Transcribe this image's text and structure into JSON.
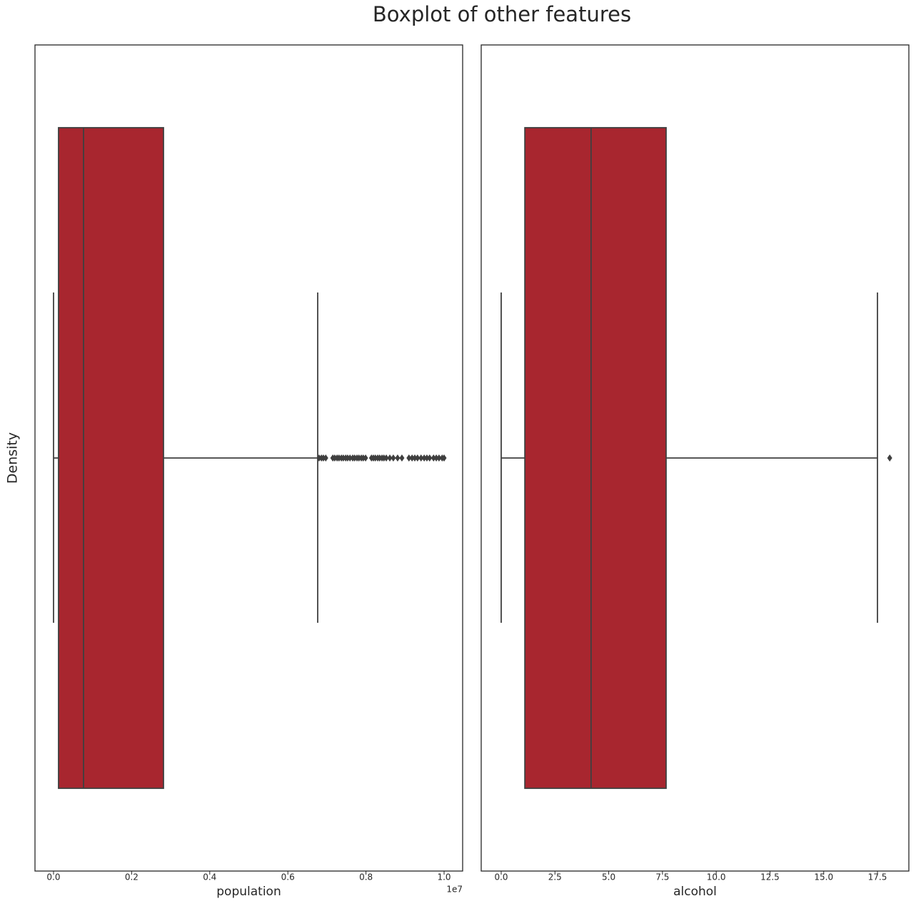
{
  "title": "Boxplot of other features",
  "ylabel": "Density",
  "chart_data": [
    {
      "type": "box",
      "xlabel": "population",
      "x_offset_label": "1e7",
      "color": "#a8262f",
      "xlim": [
        -475000,
        10475000
      ],
      "xticks": [
        {
          "value": 0,
          "label": "0.0"
        },
        {
          "value": 2000000,
          "label": "0.2"
        },
        {
          "value": 4000000,
          "label": "0.4"
        },
        {
          "value": 6000000,
          "label": "0.6"
        },
        {
          "value": 8000000,
          "label": "0.8"
        },
        {
          "value": 10000000,
          "label": "1.0"
        }
      ],
      "whislo": 0,
      "q1": 128000,
      "median": 768000,
      "q3": 2815000,
      "whishi": 6764000,
      "outliers": [
        6800000,
        6860000,
        6910000,
        6970000,
        7150000,
        7200000,
        7260000,
        7310000,
        7370000,
        7420000,
        7480000,
        7530000,
        7590000,
        7660000,
        7710000,
        7770000,
        7820000,
        7880000,
        7930000,
        7990000,
        8140000,
        8190000,
        8240000,
        8300000,
        8350000,
        8410000,
        8460000,
        8520000,
        8610000,
        8700000,
        8810000,
        8920000,
        9100000,
        9180000,
        9250000,
        9320000,
        9410000,
        9490000,
        9560000,
        9630000,
        9730000,
        9800000,
        9870000,
        9950000,
        10000000
      ]
    },
    {
      "type": "box",
      "xlabel": "alcohol",
      "color": "#a8262f",
      "xlim": [
        -0.93,
        18.96
      ],
      "xticks": [
        {
          "value": 0,
          "label": "0.0"
        },
        2.5,
        {
          "value": 5,
          "label": "5.0"
        },
        7.5,
        {
          "value": 10,
          "label": "10.0"
        },
        12.5,
        {
          "value": 15,
          "label": "15.0"
        },
        17.5
      ],
      "whislo": 0,
      "q1": 1.1,
      "median": 4.18,
      "q3": 7.67,
      "whishi": 17.5,
      "outliers": [
        18.07
      ]
    }
  ]
}
